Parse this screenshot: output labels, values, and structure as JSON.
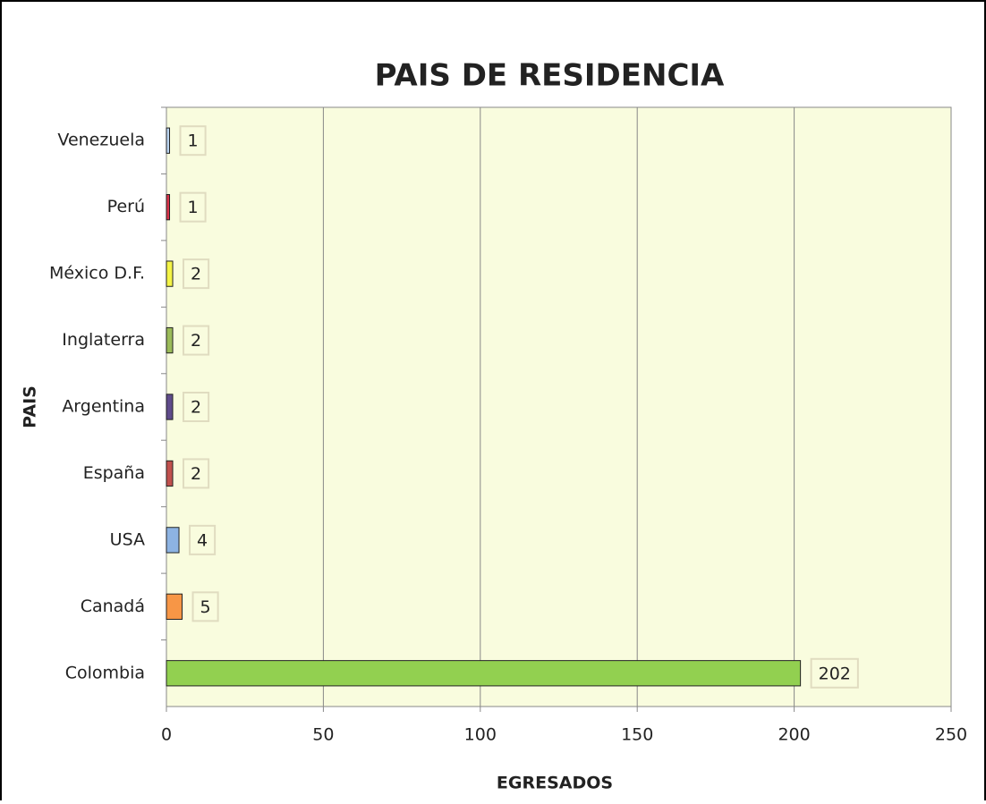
{
  "chart_data": {
    "type": "barh",
    "title": "PAIS DE RESIDENCIA",
    "x_label": "EGRESADOS",
    "y_label": "PAIS",
    "categories": [
      "Venezuela",
      "Perú",
      "México D.F.",
      "Inglaterra",
      "Argentina",
      "España",
      "USA",
      "Canadá",
      "Colombia"
    ],
    "values": [
      1,
      1,
      2,
      2,
      2,
      2,
      4,
      5,
      202
    ],
    "colors": [
      "#b9d3ef",
      "#d8344a",
      "#f4f447",
      "#9bbb59",
      "#5f4b8b",
      "#c0504d",
      "#8db3e2",
      "#f79646",
      "#92d050"
    ],
    "xlim": [
      0,
      250
    ],
    "xticks": [
      0,
      50,
      100,
      150,
      200,
      250
    ],
    "grid": true
  }
}
